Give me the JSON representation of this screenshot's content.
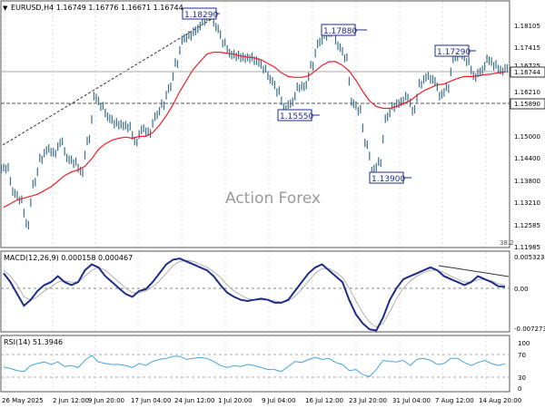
{
  "header": {
    "symbol_line": "EURUSD,H4  1.16749 1.16776 1.16671 1.16744"
  },
  "watermark": "Action Forex",
  "colors": {
    "price_bar": "#3d6e8a",
    "moving_average": "#e8212b",
    "macd_line": "#1f2d8a",
    "macd_signal": "#b0b0b0",
    "rsi_line": "#4aa3df",
    "annotation": "#1f2d8a",
    "grid": "#d9d9d9",
    "reference_line": "#7f7f7f"
  },
  "price_panel": {
    "y_axis_ticks": [
      "1.18105",
      "1.17415",
      "1.16725",
      "1.16210",
      "1.15890",
      "1.15000",
      "1.14400",
      "1.13800",
      "1.13210",
      "1.12585",
      "1.11985"
    ],
    "current_price_tag": "1.16744",
    "horizontal_level_tag": "1.15890",
    "fib_label": "38.2",
    "annotations": [
      {
        "label": "1.18290",
        "value": 1.1829
      },
      {
        "label": "1.17880",
        "value": 1.1788
      },
      {
        "label": "1.17290",
        "value": 1.1729
      },
      {
        "label": "1.15550",
        "value": 1.1555
      },
      {
        "label": "1.13900",
        "value": 1.139
      }
    ]
  },
  "macd_panel": {
    "label": "MACD(12,26,9) 0.000158 0.000467",
    "y_axis_ticks": [
      "0.005323",
      "0.00",
      "-0.007273"
    ]
  },
  "rsi_panel": {
    "label": "RSI(14) 51.3946",
    "y_axis_ticks": [
      "100",
      "70",
      "30",
      "0"
    ]
  },
  "x_axis": {
    "labels": [
      "26 May 2025",
      "2 Jun 12:00",
      "9 Jun 20:00",
      "17 Jun 04:00",
      "24 Jun 12:00",
      "1 Jul 20:00",
      "9 Jul 04:00",
      "16 Jul 12:00",
      "23 Jul 20:00",
      "31 Jul 04:00",
      "7 Aug 12:00",
      "14 Aug 20:00"
    ]
  },
  "chart_data": {
    "type": "line",
    "title": "",
    "series": [
      {
        "name": "EURUSD",
        "values": [
          1.1405,
          1.134,
          1.132,
          1.1255,
          1.1365,
          1.143,
          1.1455,
          1.1445,
          1.1475,
          1.143,
          1.142,
          1.1395,
          1.148,
          1.1595,
          1.157,
          1.154,
          1.1525,
          1.152,
          1.1515,
          1.1475,
          1.151,
          1.15,
          1.1545,
          1.1575,
          1.162,
          1.1685,
          1.175,
          1.176,
          1.1775,
          1.18,
          1.1815,
          1.178,
          1.174,
          1.171,
          1.1705,
          1.17,
          1.17,
          1.169,
          1.167,
          1.164,
          1.161,
          1.1565,
          1.158,
          1.162,
          1.1625,
          1.168,
          1.174,
          1.176,
          1.177,
          1.173,
          1.17,
          1.158,
          1.156,
          1.147,
          1.14,
          1.142,
          1.154,
          1.157,
          1.158,
          1.1595,
          1.156,
          1.163,
          1.165,
          1.164,
          1.16,
          1.162,
          1.17,
          1.171,
          1.169,
          1.165,
          1.1665,
          1.1695,
          1.168,
          1.1665,
          1.1674
        ]
      },
      {
        "name": "MA",
        "values": [
          1.13,
          1.131,
          1.132,
          1.1325,
          1.133,
          1.1335,
          1.1345,
          1.1355,
          1.137,
          1.1385,
          1.1395,
          1.14,
          1.141,
          1.143,
          1.1455,
          1.147,
          1.148,
          1.1485,
          1.1488,
          1.1485,
          1.149,
          1.149,
          1.15,
          1.152,
          1.1545,
          1.1575,
          1.161,
          1.164,
          1.167,
          1.169,
          1.171,
          1.1715,
          1.1715,
          1.1712,
          1.171,
          1.1705,
          1.1702,
          1.17,
          1.1695,
          1.1685,
          1.1675,
          1.166,
          1.165,
          1.1648,
          1.1648,
          1.1652,
          1.1665,
          1.168,
          1.169,
          1.169,
          1.168,
          1.1665,
          1.164,
          1.161,
          1.1585,
          1.157,
          1.1565,
          1.1565,
          1.157,
          1.1578,
          1.1585,
          1.16,
          1.1612,
          1.162,
          1.1628,
          1.163,
          1.1638,
          1.1645,
          1.165,
          1.165,
          1.1652,
          1.1655,
          1.1657,
          1.166,
          1.1662
        ]
      }
    ],
    "ylim": [
      1.1195,
      1.185
    ],
    "macd": {
      "macd_values": [
        0.0025,
        0.001,
        -0.001,
        -0.003,
        -0.002,
        -0.0005,
        0.0005,
        0.001,
        0.002,
        0.001,
        0.0005,
        0.001,
        0.003,
        0.004,
        0.0035,
        0.002,
        0.001,
        0.0,
        -0.001,
        -0.0015,
        -0.0005,
        -0.0002,
        0.001,
        0.0025,
        0.004,
        0.0048,
        0.005,
        0.0045,
        0.004,
        0.0035,
        0.003,
        0.002,
        0.0005,
        -0.0008,
        -0.0015,
        -0.002,
        -0.0022,
        -0.002,
        -0.0018,
        -0.002,
        -0.0025,
        -0.0025,
        -0.002,
        -0.0005,
        0.001,
        0.0025,
        0.0035,
        0.004,
        0.003,
        0.002,
        0.001,
        -0.002,
        -0.0045,
        -0.006,
        -0.007,
        -0.0072,
        -0.005,
        -0.002,
        0.0,
        0.0015,
        0.002,
        0.0025,
        0.003,
        0.0035,
        0.003,
        0.002,
        0.0015,
        0.001,
        0.0005,
        0.001,
        0.002,
        0.0015,
        0.001,
        0.0003,
        0.0002
      ],
      "signal_values": [
        0.003,
        0.002,
        0.0005,
        -0.0015,
        -0.002,
        -0.0015,
        -0.0005,
        0.0002,
        0.001,
        0.0012,
        0.001,
        0.001,
        0.002,
        0.003,
        0.0035,
        0.003,
        0.002,
        0.001,
        0.0,
        -0.0008,
        -0.0008,
        -0.0005,
        0.0002,
        0.0012,
        0.0025,
        0.0038,
        0.0045,
        0.0047,
        0.0045,
        0.004,
        0.0035,
        0.0028,
        0.0018,
        0.0005,
        -0.0005,
        -0.0012,
        -0.0018,
        -0.002,
        -0.002,
        -0.002,
        -0.0022,
        -0.0024,
        -0.0022,
        -0.0014,
        -0.0002,
        0.0012,
        0.0025,
        0.0033,
        0.0033,
        0.0027,
        0.0018,
        0.0,
        -0.0022,
        -0.0042,
        -0.0058,
        -0.0066,
        -0.006,
        -0.004,
        -0.0018,
        0.0,
        0.0012,
        0.002,
        0.0026,
        0.003,
        0.003,
        0.0026,
        0.002,
        0.0015,
        0.001,
        0.001,
        0.0014,
        0.0015,
        0.0012,
        0.0007,
        0.0005
      ],
      "ylim": [
        -0.007273,
        0.005323
      ]
    },
    "rsi": {
      "values": [
        45,
        42,
        38,
        36,
        48,
        52,
        55,
        50,
        55,
        46,
        48,
        44,
        58,
        68,
        55,
        52,
        50,
        50,
        48,
        44,
        52,
        48,
        56,
        60,
        62,
        66,
        66,
        60,
        62,
        64,
        62,
        56,
        48,
        44,
        48,
        46,
        50,
        48,
        44,
        40,
        40,
        36,
        46,
        56,
        54,
        60,
        64,
        60,
        62,
        54,
        50,
        38,
        40,
        30,
        26,
        40,
        58,
        56,
        55,
        58,
        48,
        60,
        62,
        58,
        50,
        52,
        62,
        62,
        54,
        48,
        54,
        58,
        52,
        48,
        51.4
      ],
      "ylim": [
        0,
        100
      ]
    }
  }
}
